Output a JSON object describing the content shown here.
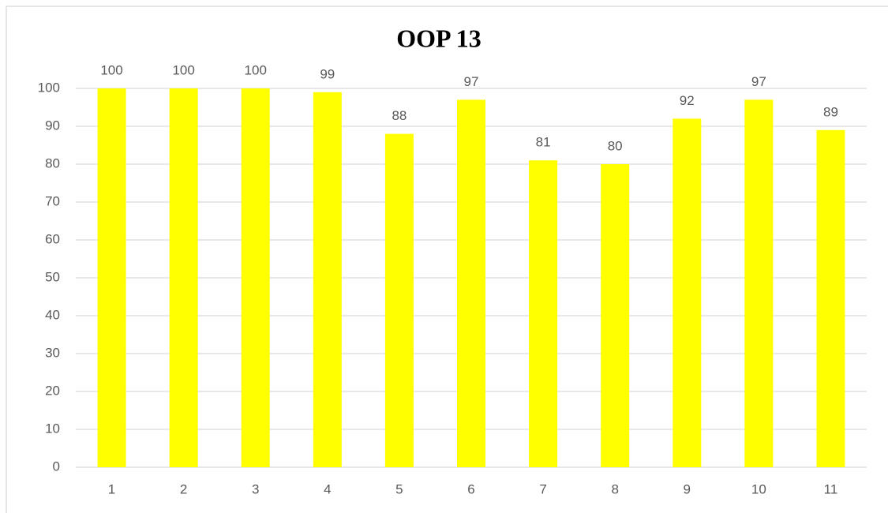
{
  "chart_data": {
    "type": "bar",
    "title": "OOP 13",
    "categories": [
      "1",
      "2",
      "3",
      "4",
      "5",
      "6",
      "7",
      "8",
      "9",
      "10",
      "11"
    ],
    "values": [
      100,
      100,
      100,
      99,
      88,
      97,
      81,
      80,
      92,
      97,
      89
    ],
    "color": "#ffff00",
    "ylim": [
      0,
      100
    ],
    "yticks": [
      0,
      10,
      20,
      30,
      40,
      50,
      60,
      70,
      80,
      90,
      100
    ],
    "grid": true
  }
}
